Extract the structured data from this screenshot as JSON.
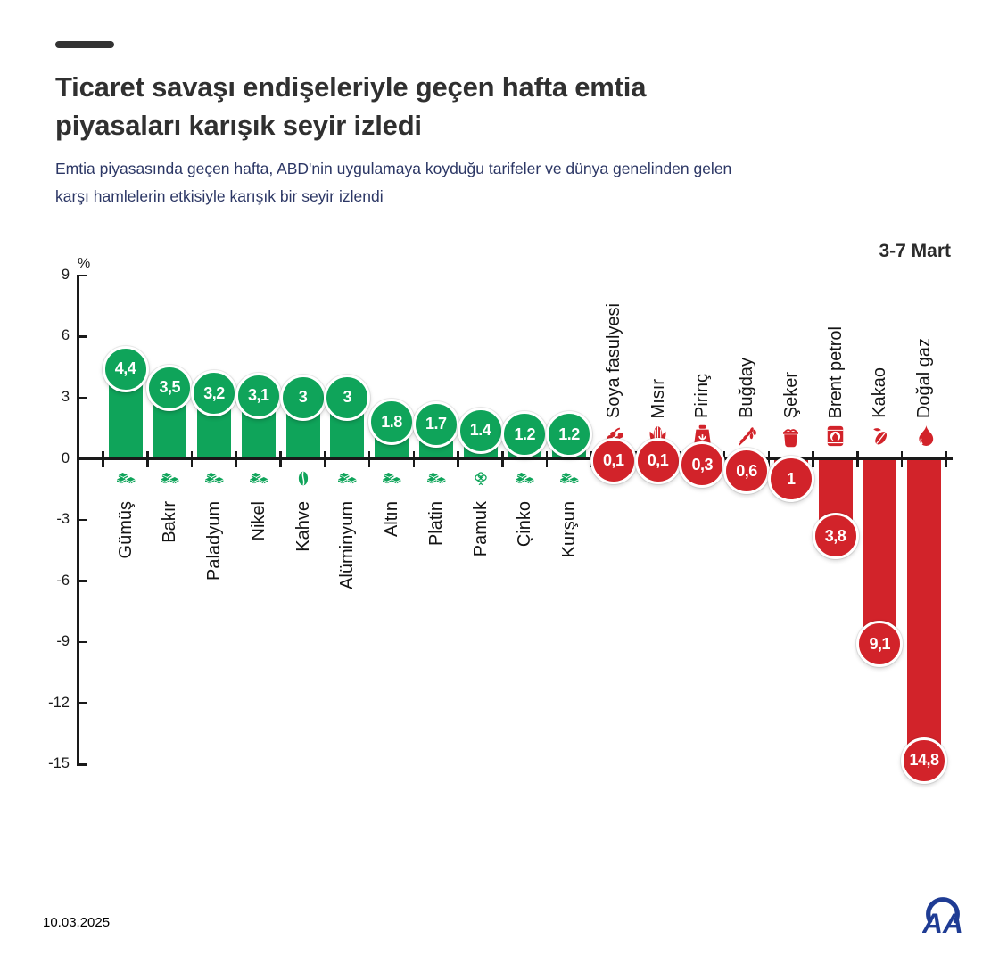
{
  "header": {
    "title_lines": [
      "Ticaret savaşı endişeleriyle geçen hafta emtia",
      "piyasaları karışık seyir izledi"
    ],
    "subtitle_lines": [
      "Emtia piyasasında geçen hafta, ABD'nin uygulamaya koyduğu tarifeler ve dünya genelinden gelen",
      "karşı hamlelerin etkisiyle karışık bir seyir izlendi"
    ]
  },
  "colors": {
    "positive": "#0FA45A",
    "negative": "#D2232A",
    "brand_navy": "#1F3C94"
  },
  "chart_data": {
    "type": "bar",
    "title": "Ticaret savaşı endişeleriyle geçen hafta emtia piyasaları karışık seyir izledi",
    "period_label": "3-7 Mart",
    "ylabel": "%",
    "ylim": [
      -15,
      9
    ],
    "ytick_labels": [
      "9",
      "6",
      "3",
      "0",
      "-3",
      "-6",
      "-9",
      "-12",
      "-15"
    ],
    "grid": false,
    "legend": false,
    "items": [
      {
        "label": "Gümüş",
        "value": 4.4,
        "display": "4,4",
        "icon": "metal-ingots-icon"
      },
      {
        "label": "Bakır",
        "value": 3.5,
        "display": "3,5",
        "icon": "metal-ingots-icon"
      },
      {
        "label": "Paladyum",
        "value": 3.2,
        "display": "3,2",
        "icon": "metal-ingots-icon"
      },
      {
        "label": "Nikel",
        "value": 3.1,
        "display": "3,1",
        "icon": "metal-ingots-icon"
      },
      {
        "label": "Kahve",
        "value": 3,
        "display": "3",
        "icon": "coffee-bean-icon"
      },
      {
        "label": "Alüminyum",
        "value": 3,
        "display": "3",
        "icon": "metal-ingots-icon"
      },
      {
        "label": "Altın",
        "value": 1.8,
        "display": "1.8",
        "icon": "metal-ingots-icon"
      },
      {
        "label": "Platin",
        "value": 1.7,
        "display": "1.7",
        "icon": "metal-ingots-icon"
      },
      {
        "label": "Pamuk",
        "value": 1.4,
        "display": "1.4",
        "icon": "cotton-icon"
      },
      {
        "label": "Çinko",
        "value": 1.2,
        "display": "1.2",
        "icon": "metal-ingots-icon"
      },
      {
        "label": "Kurşun",
        "value": 1.2,
        "display": "1.2",
        "icon": "metal-ingots-icon"
      },
      {
        "label": "Soya fasulyesi",
        "value": -0.1,
        "display": "0,1",
        "icon": "soybean-icon"
      },
      {
        "label": "Mısır",
        "value": -0.1,
        "display": "0,1",
        "icon": "corn-icon"
      },
      {
        "label": "Pirinç",
        "value": -0.3,
        "display": "0,3",
        "icon": "rice-sack-icon"
      },
      {
        "label": "Buğday",
        "value": -0.6,
        "display": "0,6",
        "icon": "wheat-icon"
      },
      {
        "label": "Şeker",
        "value": -1,
        "display": "1",
        "icon": "sugar-sack-icon"
      },
      {
        "label": "Brent petrol",
        "value": -3.8,
        "display": "3,8",
        "icon": "oil-barrel-icon"
      },
      {
        "label": "Kakao",
        "value": -9.1,
        "display": "9,1",
        "icon": "cocoa-icon"
      },
      {
        "label": "Doğal gaz",
        "value": -14.8,
        "display": "14,8",
        "icon": "gas-flame-icon"
      }
    ]
  },
  "footer": {
    "date": "10.03.2025",
    "logo_text": "AA"
  }
}
